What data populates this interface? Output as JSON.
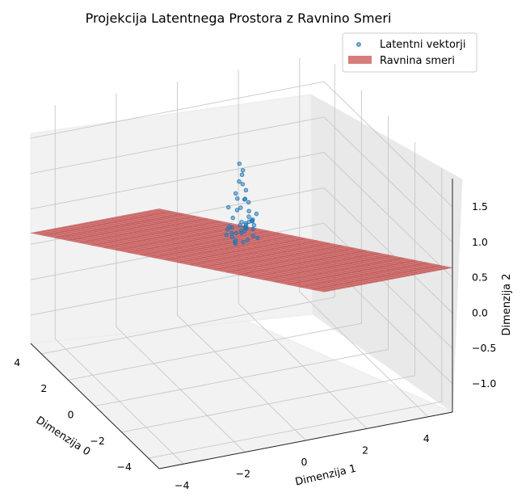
{
  "chart_data": {
    "type": "scatter3d",
    "title": "Projekcija Latentnega Prostora z Ravnino Smeri",
    "xlabel": "Dimenzija 0",
    "ylabel": "Dimenzija 1",
    "zlabel": "Dimenzija 2",
    "xlim": [
      -4.8,
      4.8
    ],
    "ylim": [
      -4.8,
      4.8
    ],
    "zlim": [
      -1.4,
      1.9
    ],
    "xticks": [
      "−4",
      "−2",
      "0",
      "2",
      "4"
    ],
    "yticks": [
      "−4",
      "−2",
      "0",
      "2",
      "4"
    ],
    "zticks": [
      "−1.0",
      "−0.5",
      "0.0",
      "0.5",
      "1.0",
      "1.5"
    ],
    "grid": true,
    "legend": {
      "placement": "top-right",
      "entries": [
        "Latentni vektorji",
        "Ravnina smeri"
      ]
    },
    "series": [
      {
        "name": "Latentni vektorji",
        "kind": "scatter",
        "color": "#1f77b4",
        "points": [
          [
            0.3,
            -0.18,
            0.55
          ],
          [
            0.12,
            0.05,
            0.62
          ],
          [
            -0.22,
            0.1,
            0.58
          ],
          [
            0.05,
            -0.3,
            0.66
          ],
          [
            0.28,
            0.22,
            0.6
          ],
          [
            -0.1,
            -0.05,
            0.7
          ],
          [
            0.18,
            -0.12,
            0.52
          ],
          [
            -0.3,
            0.25,
            0.64
          ],
          [
            0.4,
            0.0,
            0.57
          ],
          [
            -0.05,
            0.35,
            0.68
          ],
          [
            0.22,
            -0.4,
            0.61
          ],
          [
            -0.18,
            -0.28,
            0.55
          ],
          [
            0.1,
            0.18,
            0.75
          ],
          [
            -0.35,
            -0.1,
            0.59
          ],
          [
            0.33,
            0.3,
            0.63
          ],
          [
            0.0,
            0.0,
            0.8
          ],
          [
            0.15,
            -0.22,
            0.85
          ],
          [
            -0.2,
            0.15,
            0.9
          ],
          [
            0.25,
            0.08,
            0.95
          ],
          [
            -0.08,
            -0.18,
            1.0
          ],
          [
            0.05,
            0.25,
            1.05
          ],
          [
            0.2,
            -0.05,
            1.1
          ],
          [
            -0.15,
            0.05,
            1.15
          ],
          [
            0.1,
            -0.15,
            1.2
          ],
          [
            -0.05,
            0.12,
            1.25
          ],
          [
            0.15,
            0.1,
            1.3
          ],
          [
            0.0,
            -0.08,
            1.38
          ],
          [
            0.08,
            0.05,
            1.45
          ],
          [
            -0.1,
            0.0,
            1.55
          ],
          [
            0.05,
            -0.05,
            1.62
          ],
          [
            0.12,
            0.2,
            0.72
          ],
          [
            -0.25,
            0.0,
            0.77
          ],
          [
            0.35,
            -0.25,
            0.69
          ],
          [
            -0.12,
            0.3,
            0.81
          ],
          [
            0.45,
            0.15,
            0.66
          ],
          [
            -0.4,
            0.35,
            0.62
          ],
          [
            0.5,
            -0.1,
            0.64
          ],
          [
            0.6,
            0.4,
            0.58
          ],
          [
            0.55,
            0.65,
            0.6
          ],
          [
            0.7,
            0.55,
            0.63
          ],
          [
            0.38,
            0.5,
            0.71
          ],
          [
            0.2,
            0.45,
            0.76
          ],
          [
            -0.3,
            -0.35,
            0.6
          ],
          [
            0.02,
            -0.45,
            0.73
          ],
          [
            0.25,
            0.35,
            0.88
          ],
          [
            -0.2,
            0.4,
            0.92
          ],
          [
            0.3,
            -0.3,
            0.98
          ],
          [
            0.42,
            0.28,
            1.02
          ]
        ]
      },
      {
        "name": "Ravnina smeri",
        "kind": "surface",
        "color": "#cd5c5c",
        "equation": "z = 0.4 - 0.22*x - 0.17*y",
        "x_range": [
          -4.8,
          4.8
        ],
        "y_range": [
          -4.8,
          4.8
        ]
      }
    ]
  }
}
